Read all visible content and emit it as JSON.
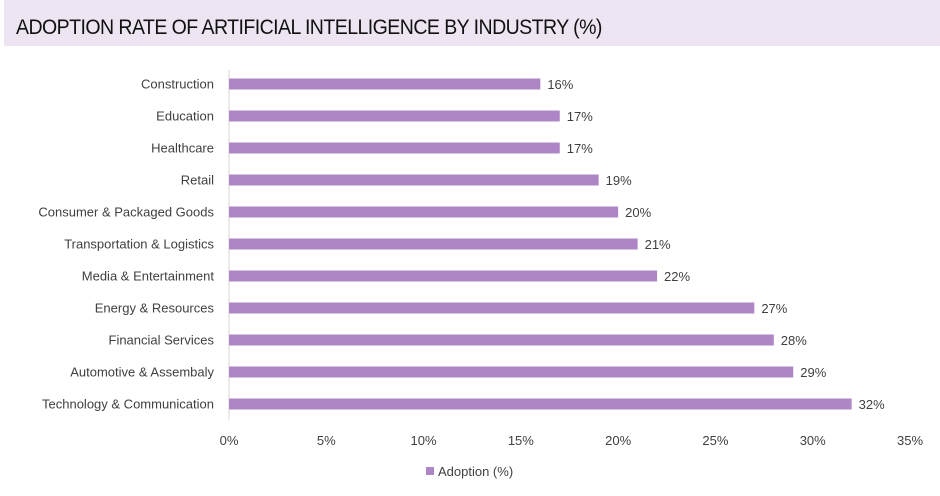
{
  "chart_data": {
    "type": "bar",
    "orientation": "horizontal",
    "title": "ADOPTION RATE OF ARTIFICIAL INTELLIGENCE BY INDUSTRY (%)",
    "categories": [
      "Construction",
      "Education",
      "Healthcare",
      "Retail",
      "Consumer & Packaged Goods",
      "Transportation & Logistics",
      "Media & Entertainment",
      "Energy & Resources",
      "Financial Services",
      "Automotive & Assembaly",
      "Technology & Communication"
    ],
    "series": [
      {
        "name": "Adoption (%)",
        "values": [
          16,
          17,
          17,
          19,
          20,
          21,
          22,
          27,
          28,
          29,
          32
        ],
        "color": "#ae86c6"
      }
    ],
    "data_labels": [
      "16%",
      "17%",
      "17%",
      "19%",
      "20%",
      "21%",
      "22%",
      "27%",
      "28%",
      "29%",
      "32%"
    ],
    "xticks": [
      "0%",
      "5%",
      "10%",
      "15%",
      "20%",
      "25%",
      "30%",
      "35%"
    ],
    "xlim": [
      0,
      35
    ],
    "xlabel": "",
    "ylabel": "",
    "grid": false,
    "legend": "bottom"
  }
}
